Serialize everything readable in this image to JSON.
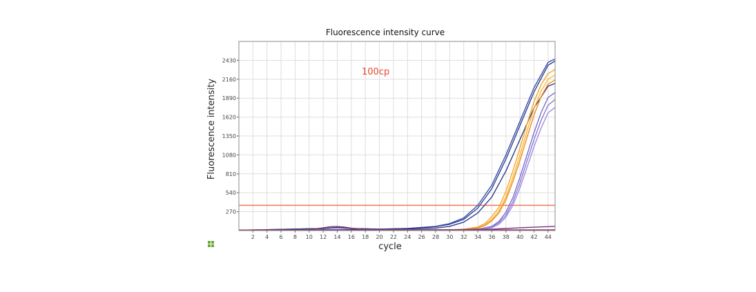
{
  "chart_data": {
    "type": "line",
    "title": "Fluorescence intensity curve",
    "xlabel": "cycle",
    "ylabel": "Fluorescence intensity",
    "xlim": [
      0,
      45
    ],
    "ylim": [
      0,
      2700
    ],
    "grid": true,
    "annotation": {
      "text": "100cp",
      "color": "#e8452c"
    },
    "x_ticks": [
      2,
      4,
      6,
      8,
      10,
      12,
      14,
      16,
      18,
      20,
      22,
      24,
      26,
      28,
      30,
      32,
      34,
      36,
      38,
      40,
      42,
      44
    ],
    "y_ticks": [
      270,
      540,
      810,
      1080,
      1350,
      1620,
      1890,
      2160,
      2430
    ],
    "threshold": {
      "value": 360,
      "color": "#ee6e4f"
    },
    "series": [
      {
        "color": "#3a4fa8",
        "x": [
          0,
          12,
          14,
          16,
          20,
          24,
          28,
          30,
          32,
          34,
          36,
          38,
          40,
          42,
          44,
          45
        ],
        "y": [
          5,
          30,
          40,
          30,
          20,
          30,
          60,
          100,
          180,
          360,
          650,
          1080,
          1560,
          2040,
          2400,
          2450
        ]
      },
      {
        "color": "#2d3f96",
        "x": [
          0,
          12,
          14,
          16,
          20,
          24,
          28,
          30,
          32,
          34,
          36,
          38,
          40,
          42,
          44,
          45
        ],
        "y": [
          5,
          30,
          45,
          30,
          20,
          30,
          55,
          90,
          160,
          320,
          600,
          1020,
          1500,
          1980,
          2360,
          2420
        ]
      },
      {
        "color": "#293a8a",
        "x": [
          0,
          20,
          28,
          30,
          32,
          34,
          36,
          38,
          40,
          42,
          44,
          45
        ],
        "y": [
          5,
          15,
          35,
          60,
          120,
          250,
          480,
          850,
          1300,
          1750,
          2060,
          2100
        ]
      },
      {
        "color": "#f5a623",
        "x": [
          0,
          30,
          32,
          34,
          35,
          36,
          37,
          38,
          39,
          40,
          41,
          42,
          43,
          44,
          45
        ],
        "y": [
          5,
          10,
          20,
          50,
          100,
          200,
          330,
          560,
          850,
          1180,
          1520,
          1840,
          2080,
          2240,
          2300
        ]
      },
      {
        "color": "#f7b733",
        "x": [
          0,
          30,
          32,
          34,
          35,
          36,
          37,
          38,
          39,
          40,
          41,
          42,
          43,
          44,
          45
        ],
        "y": [
          5,
          10,
          15,
          40,
          80,
          160,
          280,
          480,
          760,
          1080,
          1420,
          1740,
          1990,
          2160,
          2220
        ]
      },
      {
        "color": "#f08a1c",
        "x": [
          0,
          30,
          32,
          34,
          35,
          36,
          37,
          38,
          39,
          40,
          41,
          42,
          43,
          44,
          45
        ],
        "y": [
          5,
          10,
          15,
          35,
          70,
          140,
          250,
          440,
          700,
          1000,
          1330,
          1650,
          1910,
          2090,
          2150
        ]
      },
      {
        "color": "#7b6cc8",
        "x": [
          0,
          30,
          34,
          36,
          37,
          38,
          39,
          40,
          41,
          42,
          43,
          44,
          45
        ],
        "y": [
          5,
          10,
          20,
          60,
          130,
          260,
          470,
          760,
          1080,
          1400,
          1680,
          1900,
          1970
        ]
      },
      {
        "color": "#8a7bd4",
        "x": [
          0,
          30,
          34,
          36,
          37,
          38,
          39,
          40,
          41,
          42,
          43,
          44,
          45
        ],
        "y": [
          5,
          10,
          20,
          50,
          110,
          220,
          410,
          680,
          990,
          1300,
          1570,
          1790,
          1870
        ]
      },
      {
        "color": "#9b8de0",
        "x": [
          0,
          30,
          34,
          36,
          37,
          38,
          39,
          40,
          41,
          42,
          43,
          44,
          45
        ],
        "y": [
          5,
          10,
          15,
          40,
          90,
          190,
          360,
          610,
          900,
          1200,
          1460,
          1680,
          1760
        ]
      },
      {
        "color": "#7a2f86",
        "x": [
          0,
          30,
          36,
          40,
          45
        ],
        "y": [
          8,
          10,
          20,
          40,
          60
        ]
      },
      {
        "color": "#8e3a5a",
        "x": [
          0,
          10,
          12,
          13,
          14,
          15,
          16,
          18,
          20,
          45
        ],
        "y": [
          8,
          10,
          40,
          55,
          58,
          50,
          35,
          15,
          10,
          10
        ]
      }
    ]
  },
  "legend_icon": "grid-icon",
  "legend_icon_color": "#6aa83a"
}
